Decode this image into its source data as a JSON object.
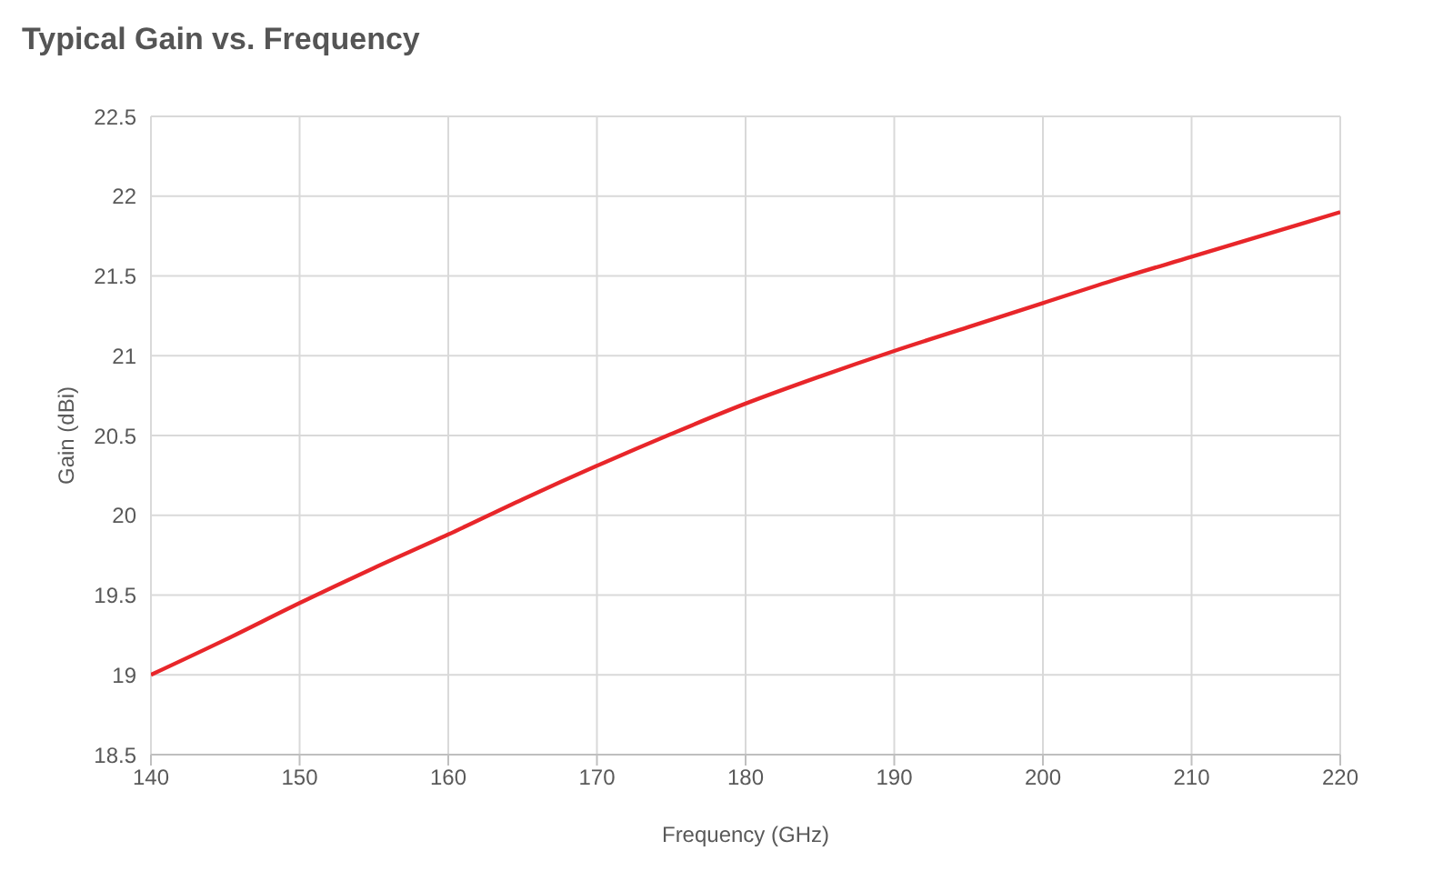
{
  "chart_data": {
    "type": "line",
    "title": "Typical Gain vs. Frequency",
    "xlabel": "Frequency (GHz)",
    "ylabel": "Gain (dBi)",
    "x": [
      140,
      145,
      150,
      155,
      160,
      165,
      170,
      175,
      180,
      185,
      190,
      195,
      200,
      205,
      210,
      215,
      220
    ],
    "series": [
      {
        "color": "#e8262a",
        "values": [
          19.0,
          19.22,
          19.45,
          19.67,
          19.88,
          20.1,
          20.31,
          20.51,
          20.7,
          20.87,
          21.03,
          21.18,
          21.33,
          21.48,
          21.62,
          21.76,
          21.9
        ]
      }
    ],
    "xlim": [
      140,
      220
    ],
    "xticks": [
      140,
      150,
      160,
      170,
      180,
      190,
      200,
      210,
      220
    ],
    "ylim": [
      18.5,
      22.5
    ],
    "yticks": [
      18.5,
      19,
      19.5,
      20,
      20.5,
      21,
      21.5,
      22,
      22.5
    ],
    "grid": true,
    "legend": false,
    "marker": "none",
    "line_style": "solid"
  }
}
